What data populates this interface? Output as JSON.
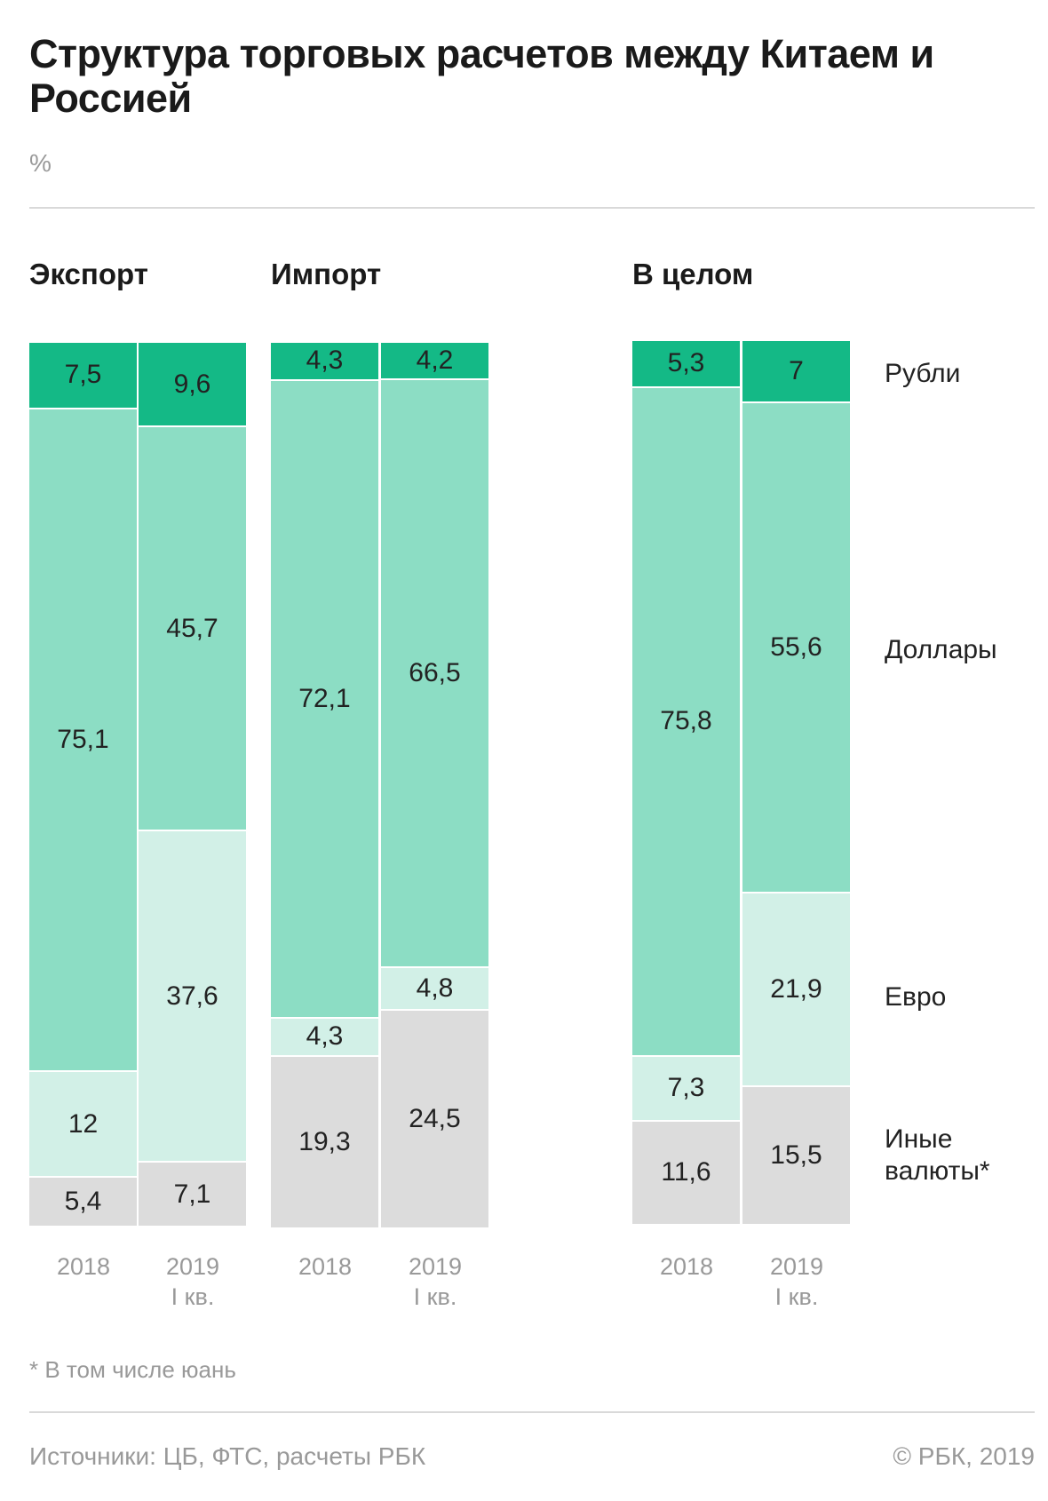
{
  "chart_data": {
    "type": "bar",
    "stacked": true,
    "title": "Структура торговых расчетов между Китаем и Россией",
    "unit": "%",
    "colors": {
      "Рубли": "#14b986",
      "Доллары": "#8cddc4",
      "Евро": "#d2f0e7",
      "Иные валюты*": "#dcdcdc"
    },
    "legend": [
      "Рубли",
      "Доллары",
      "Евро",
      "Иные валюты*"
    ],
    "groups": [
      {
        "name": "Экспорт",
        "bars": [
          {
            "year": "2018",
            "sub": "",
            "values": [
              7.5,
              75.1,
              12,
              5.4
            ],
            "labels": [
              "7,5",
              "75,1",
              "12",
              "5,4"
            ]
          },
          {
            "year": "2019",
            "sub": "I кв.",
            "values": [
              9.6,
              45.7,
              37.6,
              7.1
            ],
            "labels": [
              "9,6",
              "45,7",
              "37,6",
              "7,1"
            ]
          }
        ]
      },
      {
        "name": "Импорт",
        "bars": [
          {
            "year": "2018",
            "sub": "",
            "values": [
              4.3,
              72.1,
              4.3,
              19.3
            ],
            "labels": [
              "4,3",
              "72,1",
              "4,3",
              "19,3"
            ]
          },
          {
            "year": "2019",
            "sub": "I кв.",
            "values": [
              4.2,
              66.5,
              4.8,
              24.5
            ],
            "labels": [
              "4,2",
              "66,5",
              "4,8",
              "24,5"
            ]
          }
        ]
      },
      {
        "name": "В целом",
        "bars": [
          {
            "year": "2018",
            "sub": "",
            "values": [
              5.3,
              75.8,
              7.3,
              11.6
            ],
            "labels": [
              "5,3",
              "75,8",
              "7,3",
              "11,6"
            ]
          },
          {
            "year": "2019",
            "sub": "I кв.",
            "values": [
              7,
              55.6,
              21.9,
              15.5
            ],
            "labels": [
              "7",
              "55,6",
              "21,9",
              "15,5"
            ]
          }
        ]
      }
    ]
  },
  "legend_labels": {
    "rubles": "Рубли",
    "dollars": "Доллары",
    "euro": "Евро",
    "other_1": "Иные",
    "other_2": "валюты*"
  },
  "footnote": "* В том числе юань",
  "sources": "Источники: ЦБ, ФТС, расчеты РБК",
  "copyright": "© РБК, 2019"
}
